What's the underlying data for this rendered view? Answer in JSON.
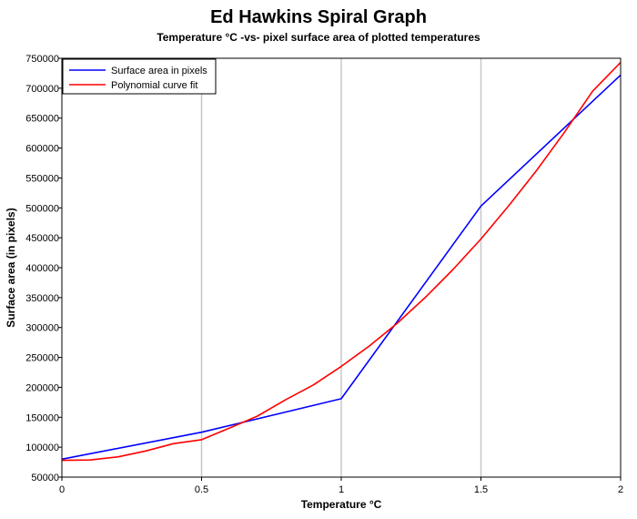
{
  "chart_data": {
    "type": "line",
    "title": "Ed Hawkins Spiral Graph",
    "subtitle": "Temperature °C -vs- pixel surface area of plotted temperatures",
    "xlabel": "Temperature °C",
    "ylabel": "Surface area (in pixels)",
    "xlim": [
      0,
      2
    ],
    "ylim": [
      50000,
      750000
    ],
    "xticks": [
      0,
      0.5,
      1,
      1.5,
      2
    ],
    "xtick_labels": [
      "0",
      "0.5",
      "1",
      "1.5",
      "2"
    ],
    "yticks": [
      50000,
      100000,
      150000,
      200000,
      250000,
      300000,
      350000,
      400000,
      450000,
      500000,
      550000,
      600000,
      650000,
      700000,
      750000
    ],
    "ytick_labels": [
      "50000",
      "100000",
      "150000",
      "200000",
      "250000",
      "300000",
      "350000",
      "400000",
      "450000",
      "500000",
      "550000",
      "600000",
      "650000",
      "700000",
      "750000"
    ],
    "grid": true,
    "legend_position": "top-left",
    "series": [
      {
        "name": "Surface area in pixels",
        "color": "#0000ff",
        "x": [
          0,
          0.5,
          1,
          1.5,
          2
        ],
        "y": [
          80000,
          125000,
          181000,
          503000,
          722000
        ]
      },
      {
        "name": "Polynomial curve fit",
        "color": "#ff0000",
        "x": [
          0,
          0.1,
          0.2,
          0.3,
          0.4,
          0.5,
          0.6,
          0.7,
          0.8,
          0.9,
          1.0,
          1.1,
          1.2,
          1.3,
          1.4,
          1.5,
          1.6,
          1.7,
          1.8,
          1.9,
          2.0
        ],
        "y": [
          78000,
          78600,
          83800,
          93600,
          106000,
          112500,
          132000,
          152000,
          179000,
          204000,
          235000,
          269000,
          307000,
          350000,
          397000,
          448000,
          504000,
          563000,
          627000,
          695000,
          743000
        ]
      }
    ]
  }
}
